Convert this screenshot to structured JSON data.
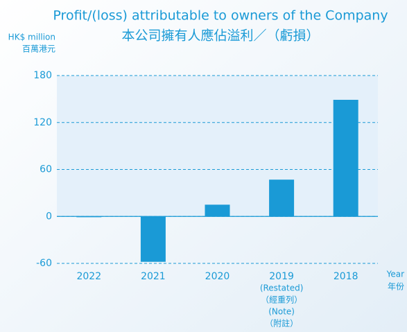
{
  "chart_data": {
    "type": "bar",
    "title": "Profit/(loss) attributable to owners of the Company",
    "subtitle": "本公司擁有人應佔溢利／（虧損）",
    "y_axis_label": [
      "HK$ million",
      "百萬港元"
    ],
    "x_axis_label": [
      "Year",
      "年份"
    ],
    "categories": [
      "2022",
      "2021",
      "2020",
      "2019",
      "2018"
    ],
    "category_notes": [
      [],
      [],
      [],
      [
        "(Restated)",
        "（經重列）",
        "(Note)",
        "（附註）"
      ],
      []
    ],
    "values": [
      -1,
      -58,
      15,
      47,
      149
    ],
    "color": "#1a9ad6",
    "ylim": [
      -60,
      180
    ],
    "yticks": [
      -60,
      0,
      60,
      120,
      180
    ],
    "grid": true
  }
}
